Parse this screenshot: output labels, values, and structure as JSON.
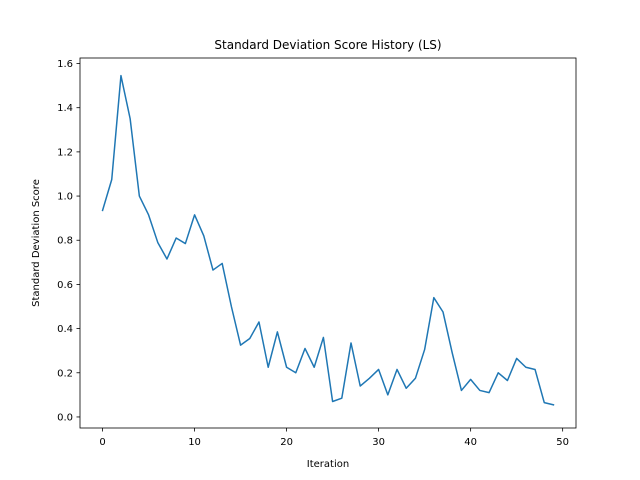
{
  "chart_data": {
    "type": "line",
    "title": "Standard Deviation Score History (LS)",
    "xlabel": "Iteration",
    "ylabel": "Standard Deviation Score",
    "xlim": [
      -2.45,
      51.45
    ],
    "ylim": [
      -0.05,
      1.625
    ],
    "xticks": [
      0,
      10,
      20,
      30,
      40,
      50
    ],
    "yticks": [
      0.0,
      0.2,
      0.4,
      0.6,
      0.8,
      1.0,
      1.2,
      1.4,
      1.6
    ],
    "xtick_labels": [
      "0",
      "10",
      "20",
      "30",
      "40",
      "50"
    ],
    "ytick_labels": [
      "0.0",
      "0.2",
      "0.4",
      "0.6",
      "0.8",
      "1.0",
      "1.2",
      "1.4",
      "1.6"
    ],
    "grid": false,
    "line_color": "#1f77b4",
    "series": [
      {
        "x": [
          0,
          1,
          2,
          3,
          4,
          5,
          6,
          7,
          8,
          9,
          10,
          11,
          12,
          13,
          14,
          15,
          16,
          17,
          18,
          19,
          20,
          21,
          22,
          23,
          24,
          25,
          26,
          27,
          28,
          29,
          30,
          31,
          32,
          33,
          34,
          35,
          36,
          37,
          38,
          39,
          40,
          41,
          42,
          43,
          44,
          45,
          46,
          47,
          48,
          49
        ],
        "values": [
          0.935,
          1.075,
          1.545,
          1.35,
          1.0,
          0.915,
          0.79,
          0.715,
          0.81,
          0.785,
          0.915,
          0.82,
          0.665,
          0.695,
          0.5,
          0.325,
          0.355,
          0.43,
          0.225,
          0.385,
          0.225,
          0.2,
          0.31,
          0.225,
          0.36,
          0.07,
          0.085,
          0.335,
          0.14,
          0.175,
          0.215,
          0.1,
          0.215,
          0.13,
          0.175,
          0.305,
          0.54,
          0.475,
          0.29,
          0.12,
          0.17,
          0.12,
          0.11,
          0.2,
          0.165,
          0.265,
          0.225,
          0.215,
          0.065,
          0.055
        ]
      }
    ]
  }
}
